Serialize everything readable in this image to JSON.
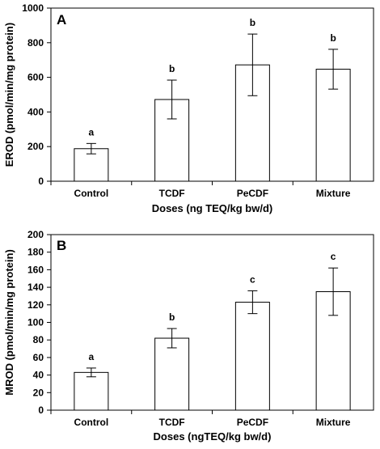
{
  "chart_data": [
    {
      "type": "bar",
      "panel": "A",
      "categories": [
        "Control",
        "TCDF",
        "PeCDF",
        "Mixture"
      ],
      "values": [
        188,
        472,
        672,
        647
      ],
      "errors": [
        30,
        112,
        178,
        115
      ],
      "significance": [
        "a",
        "b",
        "b",
        "b"
      ],
      "ylabel": "EROD (pmol/min/mg protein)",
      "xlabel": "Doses (ng TEQ/kg bw/d)",
      "ylim": [
        0,
        1000
      ],
      "yticks": [
        0,
        200,
        400,
        600,
        800,
        1000
      ],
      "grid": false,
      "bar_color": "#ffffff"
    },
    {
      "type": "bar",
      "panel": "B",
      "categories": [
        "Control",
        "TCDF",
        "PeCDF",
        "Mixture"
      ],
      "values": [
        43,
        82,
        123,
        135
      ],
      "errors": [
        5,
        11,
        13,
        27
      ],
      "significance": [
        "a",
        "b",
        "c",
        "c"
      ],
      "ylabel": "MROD (pmol/min/mg protein)",
      "xlabel": "Doses (ngTEQ/kg bw/d)",
      "ylim": [
        0,
        200
      ],
      "yticks": [
        0,
        20,
        40,
        60,
        80,
        100,
        120,
        140,
        160,
        180,
        200
      ],
      "grid": false,
      "bar_color": "#ffffff"
    }
  ]
}
